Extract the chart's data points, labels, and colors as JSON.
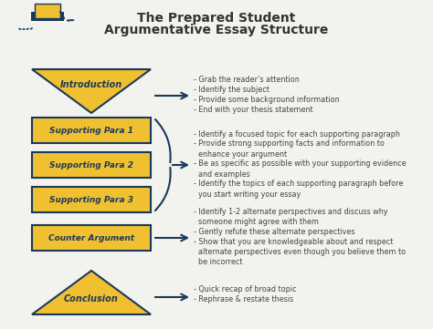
{
  "title_line1": "The Prepared Student",
  "title_line2": "Argumentative Essay Structure",
  "bg_color": "#f2f2ee",
  "navy": "#1a3a5c",
  "gold": "#f0c030",
  "text_dark": "#444444",
  "intro_bullets": [
    "- Grab the reader’s attention",
    "- Identify the subject",
    "- Provide some background information",
    "- End with your thesis statement"
  ],
  "support_labels": [
    "Supporting Para 1",
    "Supporting Para 2",
    "Supporting Para 3"
  ],
  "brace_bullets": [
    "- Identify a focused topic for each supporting paragraph",
    "- Provide strong supporting facts and information to",
    "  enhance your argument",
    "- Be as specific as possible with your supporting evidence",
    "  and examples",
    "- Identify the topics of each supporting paragraph before",
    "  you start writing your essay"
  ],
  "counter_label": "Counter Argument",
  "counter_bullets": [
    "- Identify 1-2 alternate perspectives and discuss why",
    "  someone might agree with them",
    "- Gently refute these alternate perspectives",
    "- Show that you are knowledgeable about and respect",
    "  alternate perspectives even though you believe them to",
    "  be incorrect"
  ],
  "conclusion_label": "Conclusion",
  "conclusion_bullets": [
    "- Quick recap of broad topic",
    "- Rephrase & restate thesis"
  ]
}
